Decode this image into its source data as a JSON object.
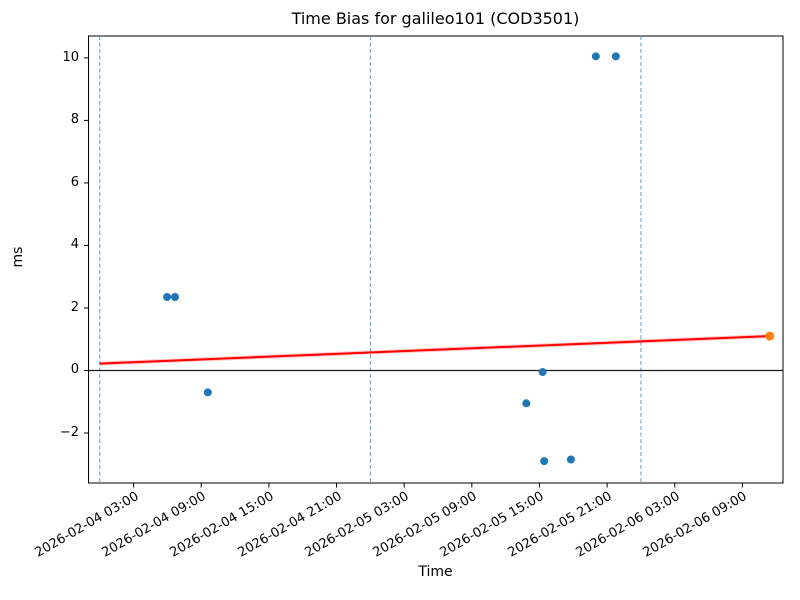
{
  "chart_data": {
    "type": "scatter",
    "title": "Time Bias for galileo101 (COD3501)",
    "xlabel": "Time",
    "ylabel": "ms",
    "xlim_hours": [
      -1.0,
      60.6
    ],
    "ylim": [
      -3.6,
      10.7
    ],
    "grid": false,
    "legend": "none",
    "x_ticks": [
      {
        "hours": 3,
        "label": "2026-02-04 03:00"
      },
      {
        "hours": 9,
        "label": "2026-02-04 09:00"
      },
      {
        "hours": 15,
        "label": "2026-02-04 15:00"
      },
      {
        "hours": 21,
        "label": "2026-02-04 21:00"
      },
      {
        "hours": 27,
        "label": "2026-02-05 03:00"
      },
      {
        "hours": 33,
        "label": "2026-02-05 09:00"
      },
      {
        "hours": 39,
        "label": "2026-02-05 15:00"
      },
      {
        "hours": 45,
        "label": "2026-02-05 21:00"
      },
      {
        "hours": 51,
        "label": "2026-02-06 03:00"
      },
      {
        "hours": 57,
        "label": "2026-02-06 09:00"
      }
    ],
    "y_ticks": [
      {
        "value": -2,
        "label": "−2"
      },
      {
        "value": 0,
        "label": "0"
      },
      {
        "value": 2,
        "label": "2"
      },
      {
        "value": 4,
        "label": "4"
      },
      {
        "value": 6,
        "label": "6"
      },
      {
        "value": 8,
        "label": "8"
      },
      {
        "value": 10,
        "label": "10"
      }
    ],
    "day_boundaries": [
      {
        "hours": 0,
        "time": "2026-02-04 00:00"
      },
      {
        "hours": 24,
        "time": "2026-02-05 00:00"
      },
      {
        "hours": 48,
        "time": "2026-02-06 00:00"
      }
    ],
    "zero_line": {
      "y": 0,
      "color": "#1a1a1a"
    },
    "series": [
      {
        "name": "series-blue",
        "color": "#1f77b4",
        "marker_radius_px": 4,
        "points": [
          {
            "time": "2026-02-04 06:00",
            "hours": 5.97,
            "ms": 2.35
          },
          {
            "time": "2026-02-04 06:40",
            "hours": 6.67,
            "ms": 2.35
          },
          {
            "time": "2026-02-04 09:35",
            "hours": 9.58,
            "ms": -0.7
          },
          {
            "time": "2026-02-05 13:50",
            "hours": 37.83,
            "ms": -1.05
          },
          {
            "time": "2026-02-05 15:15",
            "hours": 39.28,
            "ms": -0.05
          },
          {
            "time": "2026-02-05 15:25",
            "hours": 39.42,
            "ms": -2.9
          },
          {
            "time": "2026-02-05 17:50",
            "hours": 41.79,
            "ms": -2.85
          },
          {
            "time": "2026-02-05 20:00",
            "hours": 44.0,
            "ms": 10.05
          },
          {
            "time": "2026-02-05 21:45",
            "hours": 45.77,
            "ms": 10.05
          }
        ]
      },
      {
        "name": "series-orange",
        "color": "#ff7f0e",
        "marker_radius_px": 4.5,
        "points": [
          {
            "time": "2026-02-06 11:25",
            "hours": 59.42,
            "ms": 1.1
          }
        ]
      }
    ],
    "trend_line": {
      "color": "#ff0000",
      "start": {
        "hours": 0.0,
        "ms": 0.22
      },
      "end": {
        "hours": 59.42,
        "ms": 1.1
      }
    },
    "styles": {
      "day_boundary_color": "#5b9ec9",
      "axis_color": "#000000",
      "background": "#ffffff"
    }
  }
}
